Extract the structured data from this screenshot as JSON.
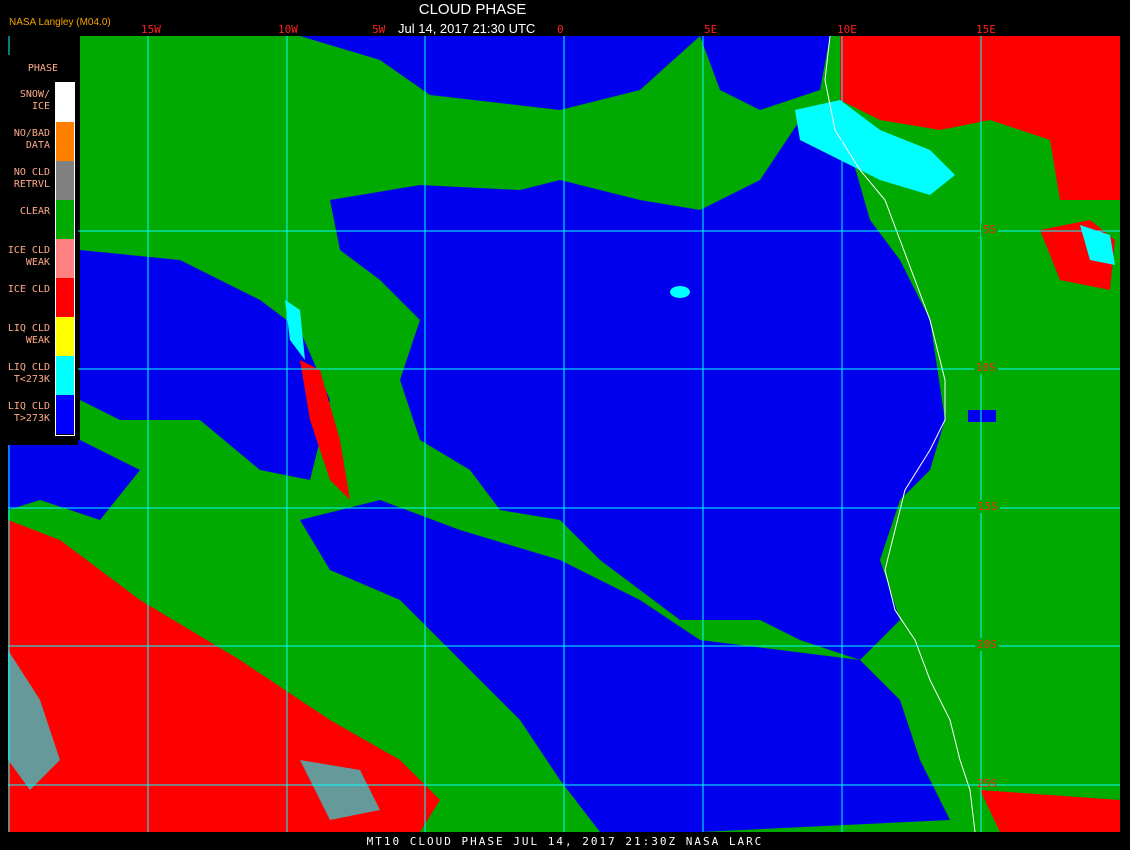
{
  "header": {
    "title": "CLOUD PHASE",
    "datetime": "Jul 14, 2017 21:30 UTC",
    "credit": "NASA Langley (M04.0)"
  },
  "legend": {
    "title": "PHASE",
    "items": [
      {
        "label": "SNOW/\nICE",
        "color": "#ffffff"
      },
      {
        "label": "NO/BAD\nDATA",
        "color": "#ff8000"
      },
      {
        "label": "NO CLD\nRETRVL",
        "color": "#808080"
      },
      {
        "label": "CLEAR",
        "color": "#00aa00"
      },
      {
        "label": "ICE CLD\nWEAK",
        "color": "#ff8080"
      },
      {
        "label": "ICE CLD",
        "color": "#ff0000"
      },
      {
        "label": "LIQ CLD\nWEAK",
        "color": "#ffff00"
      },
      {
        "label": "LIQ CLD\nT<273K",
        "color": "#00ffff"
      },
      {
        "label": "LIQ CLD\nT>273K",
        "color": "#0000ff"
      }
    ]
  },
  "grid": {
    "longitudes": [
      "15W",
      "10W",
      "5W",
      "0",
      "5E",
      "10E",
      "15E"
    ],
    "latitudes": [
      "5S",
      "10S",
      "15S",
      "20S",
      "25S"
    ],
    "line_color": "#00ffff",
    "label_color": "#ff2020"
  },
  "footer": {
    "text": "MT10  CLOUD PHASE   JUL 14, 2017 21:30Z   NASA LARC"
  }
}
